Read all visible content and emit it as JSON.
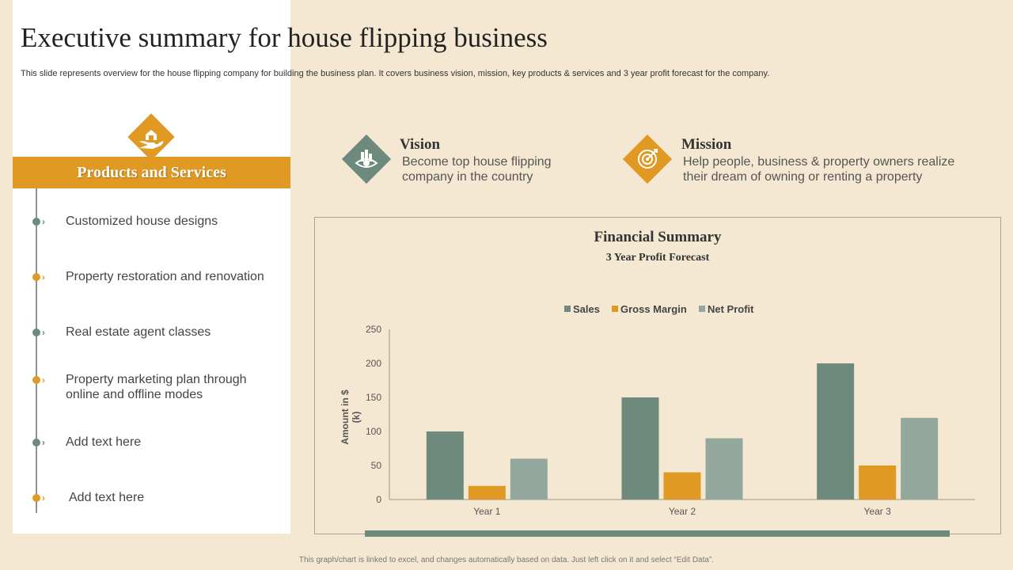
{
  "title": "Executive summary for house flipping business",
  "subtitle": "This slide represents overview for the house flipping company for building the business plan. It covers business vision, mission, key products & services and 3 year profit forecast for the company.",
  "products": {
    "heading": "Products and Services",
    "icon": "hand-house-icon",
    "items": [
      {
        "label": "Customized house designs",
        "color": "#6D8A7D"
      },
      {
        "label": "Property restoration and renovation",
        "color": "#E09A23"
      },
      {
        "label": "Real estate agent classes",
        "color": "#6D8A7D"
      },
      {
        "label": "Property marketing plan through online and offline modes",
        "color": "#E09A23"
      },
      {
        "label": "Add text here",
        "color": "#6D8A7D"
      },
      {
        "label": "Add text here",
        "color": "#E09A23"
      }
    ]
  },
  "vision": {
    "title": "Vision",
    "text": "Become top house flipping company in the country",
    "icon": "eye-building-icon",
    "color": "#6D8A7D"
  },
  "mission": {
    "title": "Mission",
    "text": "Help people, business & property owners realize their dream of owning or renting a property",
    "icon": "target-icon",
    "color": "#E09A23"
  },
  "chart_data": {
    "type": "bar",
    "title": "Financial Summary",
    "subtitle": "3 Year Profit Forecast",
    "categories": [
      "Year 1",
      "Year 2",
      "Year 3"
    ],
    "series": [
      {
        "name": "Sales",
        "values": [
          100,
          150,
          200
        ],
        "color": "#6D8A7D"
      },
      {
        "name": "Gross Margin",
        "values": [
          20,
          40,
          50
        ],
        "color": "#E09A23"
      },
      {
        "name": "Net Profit",
        "values": [
          60,
          90,
          120
        ],
        "color": "#93A89D"
      }
    ],
    "ylabel": "Amount in $ (k)",
    "xlabel": "",
    "ylim": [
      0,
      250
    ],
    "yticks": [
      0,
      50,
      100,
      150,
      200,
      250
    ],
    "grid": false,
    "legend_position": "top"
  },
  "footer": "This graph/chart is linked to excel, and changes automatically based on data. Just left click on it and select “Edit Data”."
}
